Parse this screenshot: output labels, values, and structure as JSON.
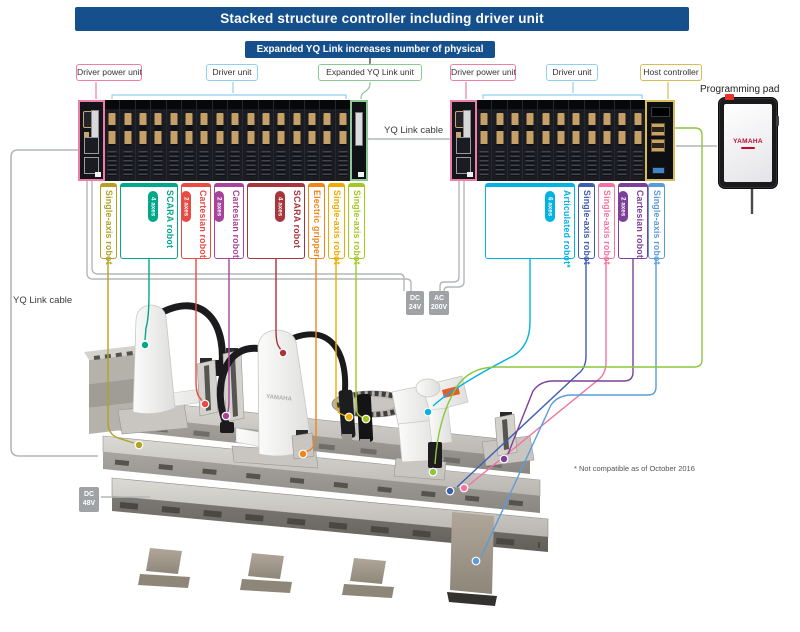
{
  "header": {
    "title": "Stacked structure controller including driver unit",
    "callout": "Expanded YQ Link increases number of physical axes."
  },
  "top_labels": [
    {
      "id": "driver-power-unit-1",
      "label": "Driver power unit",
      "color": "#f07ca8"
    },
    {
      "id": "driver-unit-1",
      "label": "Driver unit",
      "color": "#8fd0f0"
    },
    {
      "id": "expanded-yq-link-unit",
      "label": "Expanded YQ Link unit",
      "color": "#8cc896"
    },
    {
      "id": "driver-power-unit-2",
      "label": "Driver power unit",
      "color": "#f07ca8"
    },
    {
      "id": "driver-unit-2",
      "label": "Driver unit",
      "color": "#8fd0f0"
    },
    {
      "id": "host-controller",
      "label": "Host controller",
      "color": "#d8bc55"
    }
  ],
  "cables": {
    "yq_link_left": "YQ Link cable",
    "yq_link_mid": "YQ Link cable"
  },
  "pad": {
    "label": "Programming pad",
    "brand": "YAMAHA"
  },
  "machine": {
    "brand": "YAMAHA"
  },
  "racks": {
    "left_modules": 16,
    "right_modules": 11
  },
  "robots": [
    {
      "id": "single-axis-robot-1",
      "label": "Single-axis robot",
      "axes": null,
      "color": "#b3a126"
    },
    {
      "id": "scara-robot-1",
      "label": "SCARA robot",
      "axes": "4 axes",
      "color": "#00a78b"
    },
    {
      "id": "cartesian-robot-1",
      "label": "Cartesian robot",
      "axes": "2 axes",
      "color": "#e94a43"
    },
    {
      "id": "cartesian-robot-2",
      "label": "Cartesian robot",
      "axes": "2 axes",
      "color": "#a8439b"
    },
    {
      "id": "scara-robot-2",
      "label": "SCARA robot",
      "axes": "4 axes",
      "color": "#a8343c"
    },
    {
      "id": "electric-gripper",
      "label": "Electric gripper",
      "axes": null,
      "color": "#f08419"
    },
    {
      "id": "single-axis-robot-2",
      "label": "Single-axis robot",
      "axes": null,
      "color": "#edab00"
    },
    {
      "id": "single-axis-robot-3",
      "label": "Single-axis robot",
      "axes": null,
      "color": "#a3c822"
    },
    {
      "id": "articulated-robot",
      "label": "Articulated robot*",
      "axes": "6 axes",
      "color": "#00b3e3"
    },
    {
      "id": "single-axis-robot-4",
      "label": "Single-axis robot",
      "axes": null,
      "color": "#3f5dae"
    },
    {
      "id": "single-axis-robot-5",
      "label": "Single-axis robot",
      "axes": null,
      "color": "#f272a2"
    },
    {
      "id": "cartesian-robot-3",
      "label": "Cartesian robot",
      "axes": "2 axes",
      "color": "#7d4098"
    },
    {
      "id": "single-axis-robot-6",
      "label": "Single-axis robot",
      "axes": null,
      "color": "#5b9cd8"
    }
  ],
  "power_badges": [
    {
      "id": "dc-24v",
      "line1": "DC",
      "line2": "24V"
    },
    {
      "id": "ac-200v",
      "line1": "AC",
      "line2": "200V"
    },
    {
      "id": "dc-48v",
      "line1": "DC",
      "line2": "48V"
    }
  ],
  "host_link_color": "#8cc63f",
  "footnote": "* Not compatible as of October 2016"
}
